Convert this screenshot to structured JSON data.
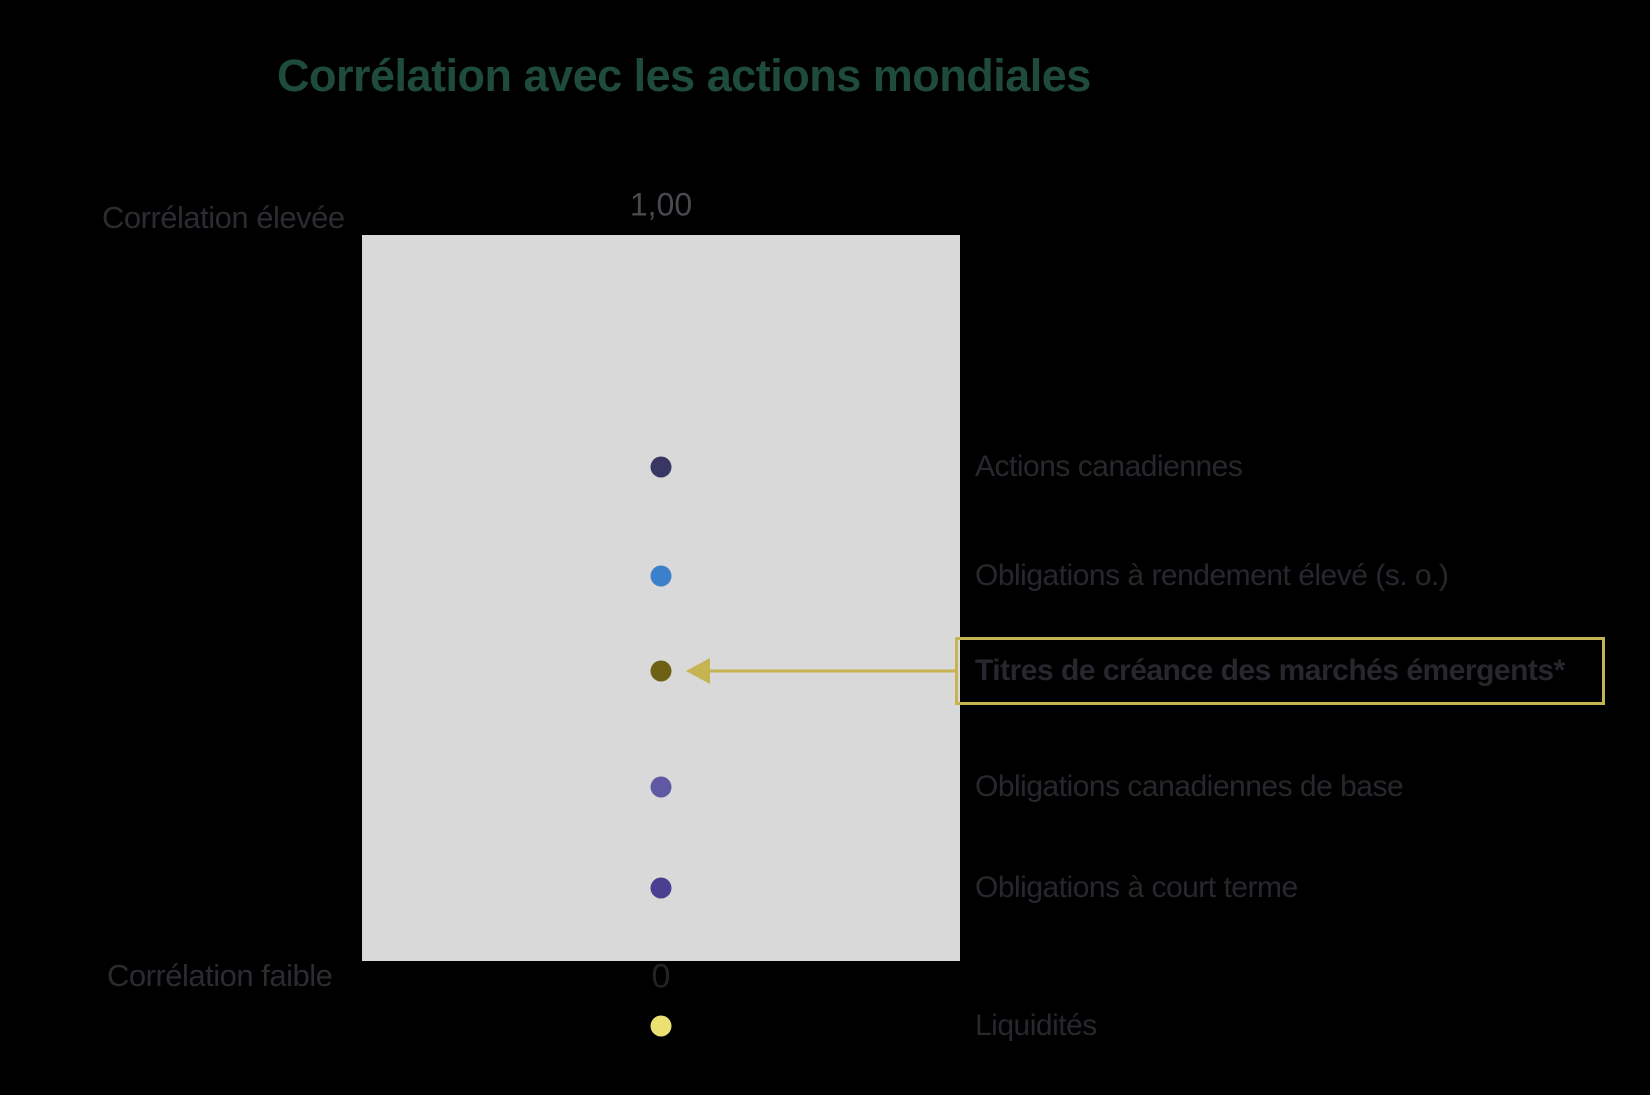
{
  "title": {
    "text": "Corrélation avec les actions mondiales",
    "color": "#1e4b3d"
  },
  "axis": {
    "top_tick": "1,00",
    "bottom_tick": "0",
    "high_label": "Corrélation élevée",
    "low_label": "Corrélation faible"
  },
  "colors": {
    "background": "#000000",
    "plot_background": "#d9d9d9",
    "label_text": "#28272d",
    "side_label_text": "#2c2b31",
    "top_tick_text": "#4a4950",
    "bottom_tick_text": "#232228",
    "highlight_gold": "#c6b351"
  },
  "chart_data": {
    "type": "scatter",
    "title": "Corrélation avec les actions mondiales",
    "ylabel": "Corrélation avec les actions mondiales",
    "ylim": [
      0,
      1
    ],
    "y_axis": {
      "top_tick_label": "1,00",
      "bottom_tick_label": "0",
      "high_annotation": "Corrélation élevée",
      "low_annotation": "Corrélation faible"
    },
    "points": [
      {
        "label": "Actions canadiennes",
        "correlation": 0.68,
        "color": "#383663",
        "highlighted": false
      },
      {
        "label": "Obligations à rendement élevé (s. o.)",
        "correlation": 0.53,
        "color": "#3b80ca",
        "highlighted": false
      },
      {
        "label": "Titres de créance des marchés émergents*",
        "correlation": 0.4,
        "color": "#6e6014",
        "highlighted": true
      },
      {
        "label": "Obligations canadiennes de base",
        "correlation": 0.24,
        "color": "#5f59a3",
        "highlighted": false
      },
      {
        "label": "Obligations à court terme",
        "correlation": 0.1,
        "color": "#4b3f8f",
        "highlighted": false
      },
      {
        "label": "Liquidités",
        "correlation": -0.09,
        "color": "#ebe072",
        "highlighted": false
      }
    ]
  }
}
